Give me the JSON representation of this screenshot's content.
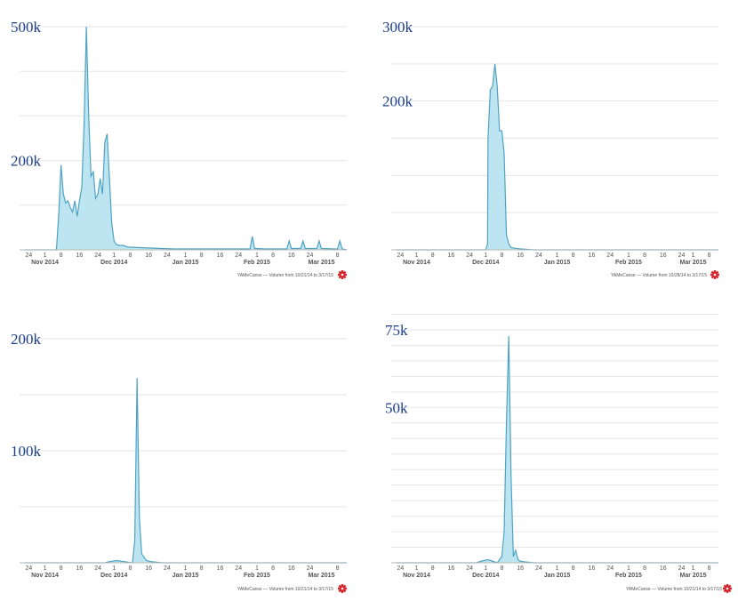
{
  "chart_data": [
    {
      "type": "area",
      "y_labels": [
        {
          "label": "500k",
          "value": 500
        },
        {
          "label": "200k",
          "value": 200
        }
      ],
      "ylim": [
        0,
        500
      ],
      "grid_values": [
        100,
        200,
        300,
        400,
        500
      ],
      "x_ticks": [
        {
          "label": "24",
          "day": -8
        },
        {
          "label": "1",
          "day": -1
        },
        {
          "label": "8",
          "day": 6
        },
        {
          "label": "16",
          "day": 14
        },
        {
          "label": "24",
          "day": 22
        },
        {
          "label": "1",
          "day": 29
        },
        {
          "label": "8",
          "day": 36
        },
        {
          "label": "16",
          "day": 44
        },
        {
          "label": "24",
          "day": 52
        },
        {
          "label": "1",
          "day": 60
        },
        {
          "label": "8",
          "day": 67
        },
        {
          "label": "16",
          "day": 75
        },
        {
          "label": "24",
          "day": 83
        },
        {
          "label": "1",
          "day": 91
        },
        {
          "label": "8",
          "day": 98
        },
        {
          "label": "16",
          "day": 106
        },
        {
          "label": "24",
          "day": 114
        },
        {
          "label": "8",
          "day": 126
        }
      ],
      "month_labels": [
        {
          "label": "Nov 2014",
          "day": -1
        },
        {
          "label": "Dec 2014",
          "day": 29
        },
        {
          "label": "Jan 2015",
          "day": 60
        },
        {
          "label": "Feb 2015",
          "day": 91
        },
        {
          "label": "Mar 2015",
          "day": 119
        }
      ],
      "series": [
        {
          "x": [
            -10,
            4,
            5,
            6,
            7,
            8,
            9,
            10,
            11,
            12,
            13,
            14,
            15,
            16,
            17,
            18,
            19,
            20,
            21,
            22,
            23,
            24,
            25,
            26,
            27,
            28,
            29,
            30,
            31,
            32,
            33,
            34,
            35,
            36,
            40,
            45,
            50,
            55,
            60,
            70,
            80,
            88,
            89,
            90,
            95,
            100,
            104,
            105,
            106,
            110,
            111,
            112,
            113,
            117,
            118,
            119,
            125,
            126,
            127,
            128,
            130
          ],
          "y": [
            0,
            0,
            80,
            190,
            125,
            105,
            110,
            95,
            85,
            110,
            75,
            110,
            140,
            280,
            500,
            300,
            165,
            175,
            115,
            125,
            160,
            125,
            240,
            260,
            160,
            60,
            20,
            12,
            10,
            10,
            10,
            8,
            6,
            6,
            5,
            4,
            3,
            2,
            2,
            2,
            2,
            2,
            30,
            3,
            2,
            2,
            2,
            20,
            3,
            3,
            20,
            3,
            3,
            3,
            20,
            3,
            2,
            2,
            20,
            2,
            0
          ]
        }
      ],
      "caption": "YAMeCanse — Volume from 10/21/14 to 3/17/15"
    },
    {
      "type": "area",
      "y_labels": [
        {
          "label": "300k",
          "value": 300
        },
        {
          "label": "200k",
          "value": 200
        }
      ],
      "ylim": [
        0,
        300
      ],
      "grid_values": [
        50,
        100,
        150,
        200,
        250,
        300
      ],
      "x_ticks": [
        {
          "label": "24",
          "day": -8
        },
        {
          "label": "1",
          "day": -1
        },
        {
          "label": "8",
          "day": 6
        },
        {
          "label": "16",
          "day": 14
        },
        {
          "label": "24",
          "day": 22
        },
        {
          "label": "1",
          "day": 29
        },
        {
          "label": "8",
          "day": 36
        },
        {
          "label": "16",
          "day": 44
        },
        {
          "label": "24",
          "day": 52
        },
        {
          "label": "1",
          "day": 60
        },
        {
          "label": "8",
          "day": 67
        },
        {
          "label": "16",
          "day": 75
        },
        {
          "label": "24",
          "day": 83
        },
        {
          "label": "1",
          "day": 91
        },
        {
          "label": "8",
          "day": 98
        },
        {
          "label": "16",
          "day": 106
        },
        {
          "label": "24",
          "day": 114
        },
        {
          "label": "1",
          "day": 119
        },
        {
          "label": "8",
          "day": 126
        }
      ],
      "month_labels": [
        {
          "label": "Nov 2014",
          "day": -1
        },
        {
          "label": "Dec 2014",
          "day": 29
        },
        {
          "label": "Jan 2015",
          "day": 60
        },
        {
          "label": "Feb 2015",
          "day": 91
        },
        {
          "label": "Mar 2015",
          "day": 119
        }
      ],
      "series": [
        {
          "x": [
            -10,
            29,
            29.8,
            30,
            31,
            32,
            33,
            34,
            35,
            36,
            37,
            38,
            39,
            40,
            42,
            45,
            50,
            130
          ],
          "y": [
            0,
            0,
            8,
            150,
            215,
            220,
            250,
            220,
            160,
            160,
            130,
            20,
            8,
            3,
            2,
            1,
            0,
            0
          ]
        }
      ],
      "caption": "YAMeCanse — Volume from 10/28/14 to 3/17/15"
    },
    {
      "type": "area",
      "y_labels": [
        {
          "label": "200k",
          "value": 200
        },
        {
          "label": "100k",
          "value": 100
        }
      ],
      "ylim": [
        0,
        200
      ],
      "grid_values": [
        50,
        100,
        150,
        200
      ],
      "x_ticks": [
        {
          "label": "24",
          "day": -8
        },
        {
          "label": "1",
          "day": -1
        },
        {
          "label": "8",
          "day": 6
        },
        {
          "label": "16",
          "day": 14
        },
        {
          "label": "24",
          "day": 22
        },
        {
          "label": "1",
          "day": 29
        },
        {
          "label": "8",
          "day": 36
        },
        {
          "label": "16",
          "day": 44
        },
        {
          "label": "24",
          "day": 52
        },
        {
          "label": "1",
          "day": 60
        },
        {
          "label": "8",
          "day": 67
        },
        {
          "label": "16",
          "day": 75
        },
        {
          "label": "24",
          "day": 83
        },
        {
          "label": "1",
          "day": 91
        },
        {
          "label": "8",
          "day": 98
        },
        {
          "label": "16",
          "day": 106
        },
        {
          "label": "24",
          "day": 114
        },
        {
          "label": "8",
          "day": 126
        }
      ],
      "month_labels": [
        {
          "label": "Nov 2014",
          "day": -1
        },
        {
          "label": "Dec 2014",
          "day": 29
        },
        {
          "label": "Jan 2015",
          "day": 60
        },
        {
          "label": "Feb 2015",
          "day": 91
        },
        {
          "label": "Mar 2015",
          "day": 119
        }
      ],
      "series": [
        {
          "x": [
            -10,
            25,
            27,
            30,
            37,
            38,
            39,
            40,
            41,
            42,
            43,
            45,
            50,
            130
          ],
          "y": [
            0,
            0,
            1,
            2,
            0,
            20,
            165,
            40,
            8,
            5,
            2,
            1,
            0,
            0
          ]
        }
      ],
      "caption": "YAMeCanse — Volume from 10/21/14 to 3/17/15"
    },
    {
      "type": "area",
      "y_labels": [
        {
          "label": "75k",
          "value": 75
        },
        {
          "label": "50k",
          "value": 50
        }
      ],
      "ylim": [
        0,
        75
      ],
      "grid_values": [
        5,
        10,
        15,
        20,
        25,
        30,
        35,
        40,
        45,
        50,
        55,
        60,
        65,
        70,
        75,
        80
      ],
      "x_ticks": [
        {
          "label": "24",
          "day": -8
        },
        {
          "label": "1",
          "day": -1
        },
        {
          "label": "8",
          "day": 6
        },
        {
          "label": "16",
          "day": 14
        },
        {
          "label": "24",
          "day": 22
        },
        {
          "label": "1",
          "day": 29
        },
        {
          "label": "8",
          "day": 36
        },
        {
          "label": "16",
          "day": 44
        },
        {
          "label": "24",
          "day": 52
        },
        {
          "label": "1",
          "day": 60
        },
        {
          "label": "8",
          "day": 67
        },
        {
          "label": "16",
          "day": 75
        },
        {
          "label": "24",
          "day": 83
        },
        {
          "label": "1",
          "day": 91
        },
        {
          "label": "8",
          "day": 98
        },
        {
          "label": "16",
          "day": 106
        },
        {
          "label": "24",
          "day": 114
        },
        {
          "label": "1",
          "day": 119
        },
        {
          "label": "8",
          "day": 126
        }
      ],
      "month_labels": [
        {
          "label": "Nov 2014",
          "day": -1
        },
        {
          "label": "Dec 2014",
          "day": 29
        },
        {
          "label": "Jan 2015",
          "day": 60
        },
        {
          "label": "Feb 2015",
          "day": 91
        },
        {
          "label": "Mar 2015",
          "day": 119
        }
      ],
      "series": [
        {
          "x": [
            -10,
            25,
            27,
            30,
            34,
            36,
            37,
            38,
            39,
            40,
            41,
            42,
            43,
            44,
            46,
            50,
            130
          ],
          "y": [
            0,
            0,
            0.5,
            1,
            0,
            2,
            10,
            45,
            73,
            28,
            2,
            4,
            1,
            0.5,
            0.3,
            0,
            0
          ]
        }
      ],
      "caption": "YAMeCanse — Volume from 10/21/14 to 3/17/15"
    }
  ]
}
